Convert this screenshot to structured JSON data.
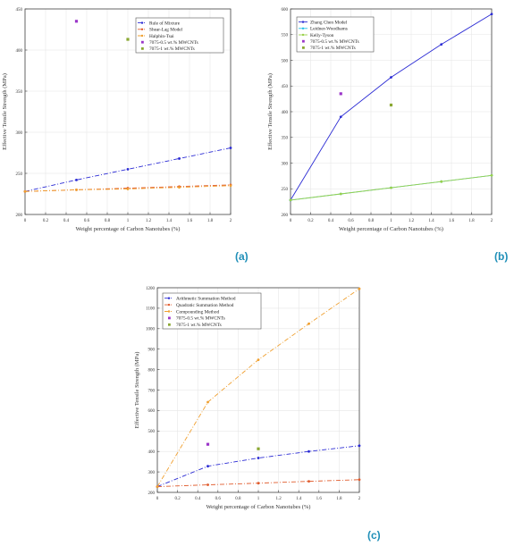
{
  "panel_labels": [
    "(a)",
    "(b)",
    "(c)"
  ],
  "chart_data": [
    {
      "id": "a",
      "type": "line",
      "xlabel": "Weight percentage of Carbon Nanotubes (%)",
      "ylabel": "Effective Tensile Strength (MPa)",
      "xlim": [
        0,
        2
      ],
      "ylim": [
        200,
        450
      ],
      "xticks": [
        0,
        0.2,
        0.4,
        0.6,
        0.8,
        1,
        1.2,
        1.4,
        1.6,
        1.8,
        2
      ],
      "xtick_labels": [
        "0",
        "0.2",
        "0.4",
        "0.6",
        "0.8",
        "1",
        "1.2",
        "1.4",
        "1.6",
        "1.8",
        "2"
      ],
      "yticks": [
        200,
        250,
        300,
        350,
        400,
        450
      ],
      "ytick_labels": [
        "200",
        "250",
        "300",
        "350",
        "400",
        "450"
      ],
      "grid": true,
      "legend_position": "top-right",
      "series": [
        {
          "name": "Rule of Mixture",
          "color": "#2b2bd4",
          "marker": "circle",
          "dash": "5,2,1,2",
          "x": [
            0,
            0.5,
            1,
            1.5,
            2
          ],
          "y": [
            228,
            242,
            255,
            268,
            281
          ]
        },
        {
          "name": "Shear-Lag Model",
          "color": "#e05a2b",
          "marker": "circle",
          "dash": "5,2,1,2",
          "x": [
            0,
            0.5,
            1,
            1.5,
            2
          ],
          "y": [
            228,
            230,
            232,
            234,
            236
          ]
        },
        {
          "name": "Halphin-Tsai",
          "color": "#f0a030",
          "marker": "circle",
          "dash": "5,2,1,2",
          "x": [
            0,
            0.5,
            1,
            1.5,
            2
          ],
          "y": [
            228,
            230,
            231,
            233,
            235
          ]
        },
        {
          "name": "7075-0.5 wt.% MWCNTs",
          "color": "#9b35c9",
          "marker": "square",
          "scatter": true,
          "x": [
            0.5
          ],
          "y": [
            435
          ]
        },
        {
          "name": "7075-1 wt.% MWCNTs",
          "color": "#8aa832",
          "marker": "square",
          "scatter": true,
          "x": [
            1
          ],
          "y": [
            413
          ]
        }
      ]
    },
    {
      "id": "b",
      "type": "line",
      "xlabel": "Weight percentage of Carbon Nanotubes (%)",
      "ylabel": "Effective Tensile Strength (MPa)",
      "xlim": [
        0,
        2
      ],
      "ylim": [
        200,
        600
      ],
      "xticks": [
        0,
        0.2,
        0.4,
        0.6,
        0.8,
        1,
        1.2,
        1.4,
        1.6,
        1.8,
        2
      ],
      "xtick_labels": [
        "0",
        "0.2",
        "0.4",
        "0.6",
        "0.8",
        "1",
        "1.2",
        "1.4",
        "1.6",
        "1.8",
        "2"
      ],
      "yticks": [
        200,
        250,
        300,
        350,
        400,
        450,
        500,
        550,
        600
      ],
      "ytick_labels": [
        "200",
        "250",
        "300",
        "350",
        "400",
        "450",
        "500",
        "550",
        "600"
      ],
      "grid": true,
      "legend_position": "top-left",
      "series": [
        {
          "name": "Zhang Chen Model",
          "color": "#2b2bd4",
          "marker": "circle",
          "dash": "none",
          "x": [
            0,
            0.5,
            1,
            1.5,
            2
          ],
          "y": [
            228,
            390,
            467,
            531,
            590
          ]
        },
        {
          "name": "Leidner-Woodhams",
          "color": "#22c0e8",
          "marker": "circle",
          "dash": "none",
          "x": [
            0,
            0.5,
            1,
            1.5,
            2
          ],
          "y": [
            228,
            240,
            252,
            264,
            276
          ]
        },
        {
          "name": "Kelly-Tyson",
          "color": "#9ad14a",
          "marker": "circle",
          "dash": "none",
          "x": [
            0,
            0.5,
            1,
            1.5,
            2
          ],
          "y": [
            228,
            240,
            252,
            264,
            276
          ]
        },
        {
          "name": "7075-0.5 wt.% MWCNTs",
          "color": "#9b35c9",
          "marker": "square",
          "scatter": true,
          "x": [
            0.5
          ],
          "y": [
            435
          ]
        },
        {
          "name": "7075-1 wt.% MWCNTs",
          "color": "#8aa832",
          "marker": "square",
          "scatter": true,
          "x": [
            1
          ],
          "y": [
            413
          ]
        }
      ]
    },
    {
      "id": "c",
      "type": "line",
      "xlabel": "Weight percentage of Carbon Nanotubes (%)",
      "ylabel": "Effective Tensile Strength (MPa)",
      "xlim": [
        0,
        2
      ],
      "ylim": [
        200,
        1200
      ],
      "xticks": [
        0,
        0.2,
        0.4,
        0.6,
        0.8,
        1,
        1.2,
        1.4,
        1.6,
        1.8,
        2
      ],
      "xtick_labels": [
        "0",
        "0.2",
        "0.4",
        "0.6",
        "0.8",
        "1",
        "1.2",
        "1.4",
        "1.6",
        "1.8",
        "2"
      ],
      "yticks": [
        200,
        300,
        400,
        500,
        600,
        700,
        800,
        900,
        1000,
        1100,
        1200
      ],
      "ytick_labels": [
        "200",
        "300",
        "400",
        "500",
        "600",
        "700",
        "800",
        "900",
        "1000",
        "1100",
        "1200"
      ],
      "grid": true,
      "legend_position": "top-left",
      "series": [
        {
          "name": "Arithmetic Summation Method",
          "color": "#2b2bd4",
          "marker": "circle",
          "dash": "5,2,1,2",
          "x": [
            0,
            0.5,
            1,
            1.5,
            2
          ],
          "y": [
            228,
            328,
            368,
            400,
            428
          ]
        },
        {
          "name": "Quadratic Summation Method",
          "color": "#e05a2b",
          "marker": "circle",
          "dash": "5,2,1,2",
          "x": [
            0,
            0.5,
            1,
            1.5,
            2
          ],
          "y": [
            228,
            237,
            245,
            254,
            262
          ]
        },
        {
          "name": "Compounding Method",
          "color": "#f0a030",
          "marker": "circle",
          "dash": "5,2,1,2",
          "x": [
            0,
            0.5,
            1,
            1.5,
            2
          ],
          "y": [
            228,
            641,
            848,
            1024,
            1195
          ]
        },
        {
          "name": "7075-0.5 wt.% MWCNTs",
          "color": "#9b35c9",
          "marker": "square",
          "scatter": true,
          "x": [
            0.5
          ],
          "y": [
            435
          ]
        },
        {
          "name": "7075-1 wt.% MWCNTs",
          "color": "#8aa832",
          "marker": "square",
          "scatter": true,
          "x": [
            1
          ],
          "y": [
            413
          ]
        }
      ]
    }
  ]
}
